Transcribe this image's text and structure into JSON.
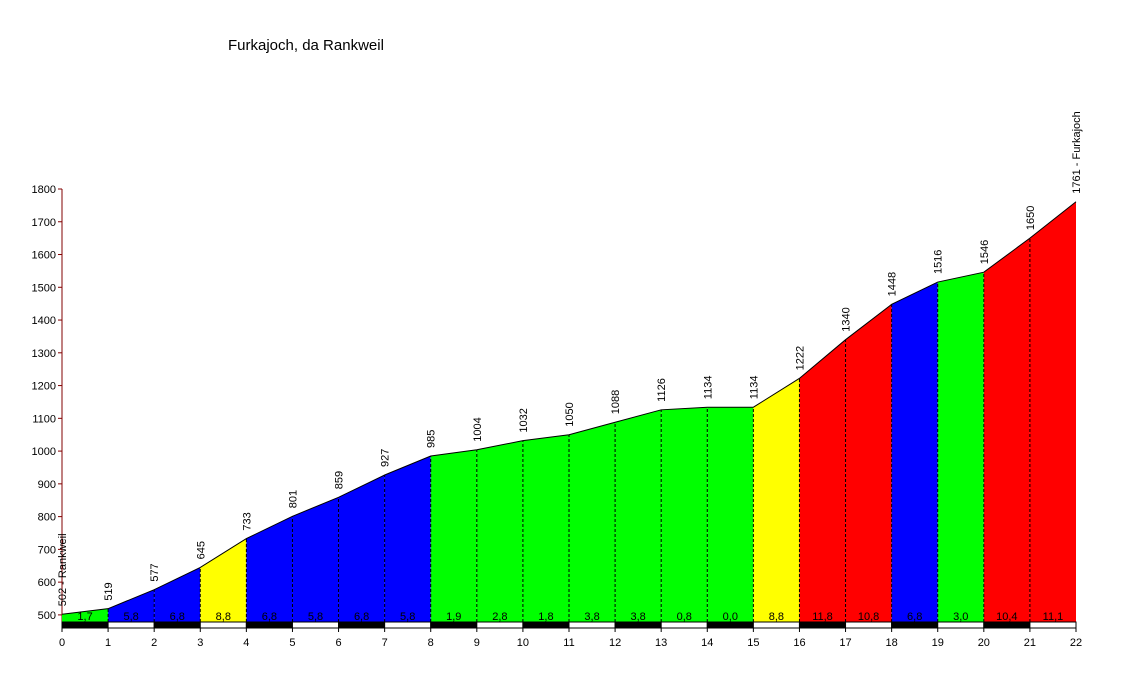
{
  "chart_data": {
    "type": "profile",
    "title": "Furkajoch, da Rankweil",
    "x": [
      0,
      1,
      2,
      3,
      4,
      5,
      6,
      7,
      8,
      9,
      10,
      11,
      12,
      13,
      14,
      15,
      16,
      17,
      18,
      19,
      20,
      21,
      22
    ],
    "elevation": {
      "values": [
        502,
        519,
        577,
        645,
        733,
        801,
        859,
        927,
        985,
        1004,
        1032,
        1050,
        1088,
        1126,
        1134,
        1134,
        1222,
        1340,
        1448,
        1516,
        1546,
        1650,
        1761
      ],
      "value_labels": [
        "502 - Rankweil",
        "519",
        "577",
        "645",
        "733",
        "801",
        "859",
        "927",
        "985",
        "1004",
        "1032",
        "1050",
        "1088",
        "1126",
        "1134",
        "1134",
        "1222",
        "1340",
        "1448",
        "1516",
        "1546",
        "1650",
        "1761 - Furkajoch"
      ]
    },
    "gradient": {
      "values": [
        1.7,
        5.8,
        6.8,
        8.8,
        6.8,
        5.8,
        6.8,
        5.8,
        1.9,
        2.8,
        1.8,
        3.8,
        3.8,
        0.8,
        0.0,
        8.8,
        11.8,
        10.8,
        6.8,
        3.0,
        10.4,
        11.1
      ],
      "value_labels": [
        "1,7",
        "5,8",
        "6,8",
        "8,8",
        "6,8",
        "5,8",
        "6,8",
        "5,8",
        "1,9",
        "2,8",
        "1,8",
        "3,8",
        "3,8",
        "0,8",
        "0,0",
        "8,8",
        "11,8",
        "10,8",
        "6,8",
        "3,0",
        "10,4",
        "11,1"
      ],
      "colors": [
        "#00ff00",
        "#0000ff",
        "#0000ff",
        "#ffff00",
        "#0000ff",
        "#0000ff",
        "#0000ff",
        "#0000ff",
        "#00ff00",
        "#00ff00",
        "#00ff00",
        "#00ff00",
        "#00ff00",
        "#00ff00",
        "#00ff00",
        "#ffff00",
        "#ff0000",
        "#ff0000",
        "#0000ff",
        "#00ff00",
        "#ff0000",
        "#ff0000"
      ]
    },
    "xlim": [
      0,
      22
    ],
    "xticks": [
      0,
      1,
      2,
      3,
      4,
      5,
      6,
      7,
      8,
      9,
      10,
      11,
      12,
      13,
      14,
      15,
      16,
      17,
      18,
      19,
      20,
      21,
      22
    ],
    "ylim": [
      460,
      1800
    ],
    "yticks": [
      500,
      600,
      700,
      800,
      900,
      1000,
      1100,
      1200,
      1300,
      1400,
      1500,
      1600,
      1700,
      1800
    ]
  }
}
